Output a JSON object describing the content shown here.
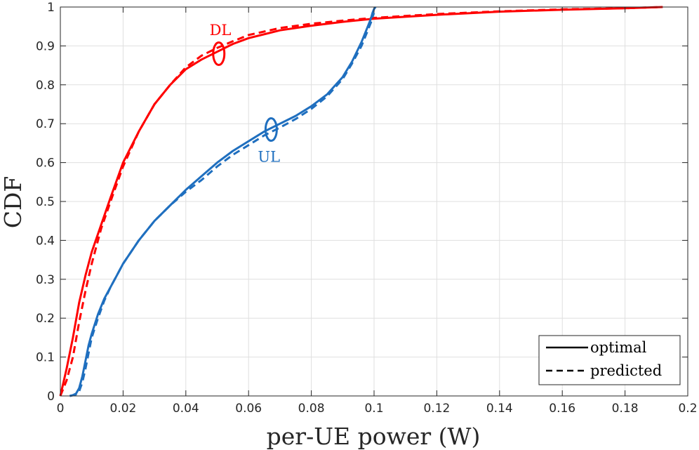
{
  "chart_data": {
    "type": "line",
    "title": "",
    "xlabel": "per-UE power (W)",
    "ylabel": "CDF",
    "xlim": [
      0,
      0.2
    ],
    "ylim": [
      0,
      1
    ],
    "grid": true,
    "xticks": [
      0,
      0.02,
      0.04,
      0.06,
      0.08,
      0.1,
      0.12,
      0.14,
      0.16,
      0.18,
      0.2
    ],
    "xtick_labels": [
      "0",
      "0.02",
      "0.04",
      "0.06",
      "0.08",
      "0.1",
      "0.12",
      "0.14",
      "0.16",
      "0.18",
      "0.2"
    ],
    "yticks": [
      0,
      0.1,
      0.2,
      0.3,
      0.4,
      0.5,
      0.6,
      0.7,
      0.8,
      0.9,
      1
    ],
    "ytick_labels": [
      "0",
      "0.1",
      "0.2",
      "0.3",
      "0.4",
      "0.5",
      "0.6",
      "0.7",
      "0.8",
      "0.9",
      "1"
    ],
    "legend": {
      "location": "bottom-right",
      "entries": [
        {
          "label": "optimal",
          "style": "solid"
        },
        {
          "label": "predicted",
          "style": "dashed"
        }
      ]
    },
    "series": [
      {
        "name": "DL optimal",
        "group": "DL",
        "style": "solid",
        "color": "#ff0000",
        "x": [
          0,
          0.002,
          0.004,
          0.006,
          0.008,
          0.01,
          0.013,
          0.016,
          0.02,
          0.025,
          0.03,
          0.035,
          0.04,
          0.045,
          0.05,
          0.055,
          0.06,
          0.07,
          0.08,
          0.09,
          0.1,
          0.12,
          0.14,
          0.16,
          0.18,
          0.192
        ],
        "y": [
          0,
          0.07,
          0.15,
          0.24,
          0.31,
          0.37,
          0.44,
          0.51,
          0.6,
          0.68,
          0.75,
          0.8,
          0.84,
          0.865,
          0.885,
          0.905,
          0.92,
          0.94,
          0.952,
          0.962,
          0.97,
          0.98,
          0.988,
          0.993,
          0.997,
          1.0
        ]
      },
      {
        "name": "DL predicted",
        "group": "DL",
        "style": "dashed",
        "color": "#ff0000",
        "x": [
          0,
          0.002,
          0.004,
          0.006,
          0.008,
          0.01,
          0.013,
          0.016,
          0.02,
          0.025,
          0.03,
          0.035,
          0.04,
          0.045,
          0.05,
          0.055,
          0.06,
          0.07,
          0.08,
          0.09,
          0.1,
          0.12,
          0.14,
          0.16,
          0.18,
          0.192
        ],
        "y": [
          0,
          0.04,
          0.1,
          0.19,
          0.27,
          0.34,
          0.43,
          0.5,
          0.59,
          0.68,
          0.75,
          0.8,
          0.845,
          0.875,
          0.895,
          0.912,
          0.928,
          0.946,
          0.957,
          0.965,
          0.972,
          0.982,
          0.989,
          0.994,
          0.997,
          1.0
        ]
      },
      {
        "name": "UL optimal",
        "group": "UL",
        "style": "solid",
        "color": "#1f6fbf",
        "x": [
          0.003,
          0.004,
          0.005,
          0.006,
          0.007,
          0.008,
          0.009,
          0.01,
          0.012,
          0.014,
          0.016,
          0.018,
          0.02,
          0.025,
          0.03,
          0.035,
          0.04,
          0.045,
          0.05,
          0.055,
          0.06,
          0.065,
          0.07,
          0.075,
          0.08,
          0.085,
          0.09,
          0.093,
          0.096,
          0.098,
          0.099,
          0.0995,
          0.1,
          0.1005
        ],
        "y": [
          0,
          0.002,
          0.006,
          0.02,
          0.05,
          0.09,
          0.13,
          0.16,
          0.21,
          0.25,
          0.28,
          0.31,
          0.34,
          0.4,
          0.45,
          0.49,
          0.53,
          0.565,
          0.6,
          0.63,
          0.655,
          0.68,
          0.7,
          0.72,
          0.745,
          0.775,
          0.82,
          0.86,
          0.91,
          0.95,
          0.97,
          0.985,
          0.995,
          1.0
        ]
      },
      {
        "name": "UL predicted",
        "group": "UL",
        "style": "dashed",
        "color": "#1f6fbf",
        "x": [
          0.003,
          0.004,
          0.005,
          0.006,
          0.007,
          0.008,
          0.009,
          0.01,
          0.012,
          0.014,
          0.016,
          0.018,
          0.02,
          0.025,
          0.03,
          0.035,
          0.04,
          0.045,
          0.05,
          0.055,
          0.06,
          0.065,
          0.07,
          0.075,
          0.08,
          0.085,
          0.09,
          0.093,
          0.096,
          0.098,
          0.099,
          0.0995,
          0.1
        ],
        "y": [
          0,
          0.002,
          0.004,
          0.012,
          0.035,
          0.07,
          0.11,
          0.15,
          0.2,
          0.245,
          0.28,
          0.31,
          0.34,
          0.4,
          0.45,
          0.49,
          0.525,
          0.555,
          0.59,
          0.62,
          0.645,
          0.67,
          0.69,
          0.712,
          0.738,
          0.77,
          0.815,
          0.855,
          0.9,
          0.94,
          0.96,
          0.975,
          0.985
        ]
      }
    ],
    "annotations": [
      {
        "text": "DL",
        "color": "#ff0000",
        "ellipse_at": {
          "x": 0.0505,
          "y": 0.88
        },
        "label_at": {
          "x": 0.051,
          "y": 0.94
        }
      },
      {
        "text": "UL",
        "color": "#1f6fbf",
        "ellipse_at": {
          "x": 0.0672,
          "y": 0.685
        },
        "label_at": {
          "x": 0.0665,
          "y": 0.615
        }
      }
    ],
    "colors": {
      "axis": "#262626",
      "grid": "#dfdfdf",
      "dl": "#ff0000",
      "ul": "#1f6fbf"
    }
  }
}
